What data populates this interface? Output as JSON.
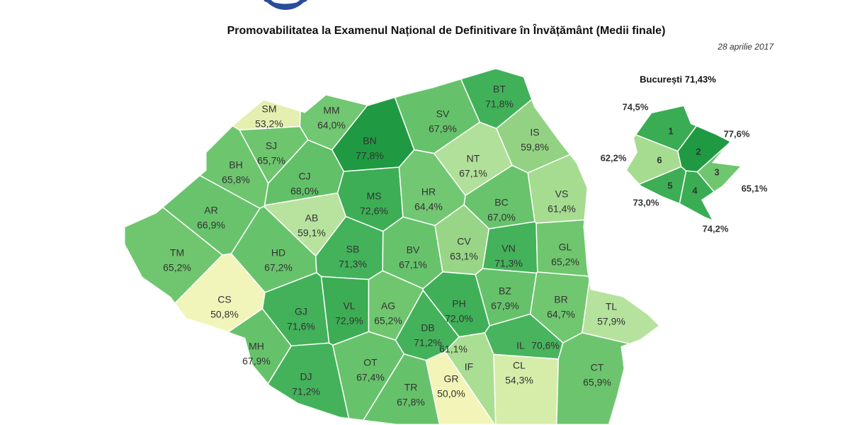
{
  "header": {
    "title": "Promovabilitatea la Examenul Național de Definitivare în Învățământ (Medii finale)",
    "date": "28 aprilie 2017"
  },
  "counties": [
    {
      "code": "SM",
      "value": "53,2%",
      "color": "#e4efb0"
    },
    {
      "code": "MM",
      "value": "64,0%",
      "color": "#72c772"
    },
    {
      "code": "BT",
      "value": "71,8%",
      "color": "#41b159"
    },
    {
      "code": "SV",
      "value": "67,9%",
      "color": "#66c26a"
    },
    {
      "code": "BN",
      "value": "77,8%",
      "color": "#1f9a42"
    },
    {
      "code": "SJ",
      "value": "65,7%",
      "color": "#6dc56e"
    },
    {
      "code": "IS",
      "value": "59,8%",
      "color": "#93d282"
    },
    {
      "code": "BH",
      "value": "65,8%",
      "color": "#6dc56e"
    },
    {
      "code": "CJ",
      "value": "68,0%",
      "color": "#62c068"
    },
    {
      "code": "NT",
      "value": "67,1%",
      "color": "#b0e09a"
    },
    {
      "code": "MS",
      "value": "72,6%",
      "color": "#3dae55"
    },
    {
      "code": "HR",
      "value": "64,4%",
      "color": "#72c772"
    },
    {
      "code": "AR",
      "value": "66,9%",
      "color": "#68c36c"
    },
    {
      "code": "AB",
      "value": "59,1%",
      "color": "#b8e39f"
    },
    {
      "code": "BC",
      "value": "67,0%",
      "color": "#68c36c"
    },
    {
      "code": "VS",
      "value": "61,4%",
      "color": "#a5dc90"
    },
    {
      "code": "TM",
      "value": "65,2%",
      "color": "#6fc66f"
    },
    {
      "code": "HD",
      "value": "67,2%",
      "color": "#67c36b"
    },
    {
      "code": "SB",
      "value": "71,3%",
      "color": "#43b25a"
    },
    {
      "code": "BV",
      "value": "67,1%",
      "color": "#67c36b"
    },
    {
      "code": "CV",
      "value": "63,1%",
      "color": "#98d587"
    },
    {
      "code": "VN",
      "value": "71,3%",
      "color": "#43b25a"
    },
    {
      "code": "GL",
      "value": "65,2%",
      "color": "#6fc66f"
    },
    {
      "code": "CS",
      "value": "50,8%",
      "color": "#f1f5ba"
    },
    {
      "code": "GJ",
      "value": "71,6%",
      "color": "#42b15a"
    },
    {
      "code": "VL",
      "value": "72,9%",
      "color": "#3cad54"
    },
    {
      "code": "AG",
      "value": "65,2%",
      "color": "#6fc66f"
    },
    {
      "code": "DB",
      "value": "71,2%",
      "color": "#44b25b"
    },
    {
      "code": "PH",
      "value": "72,0%",
      "color": "#40b058"
    },
    {
      "code": "BZ",
      "value": "67,9%",
      "color": "#66c26a"
    },
    {
      "code": "BR",
      "value": "64,7%",
      "color": "#71c670"
    },
    {
      "code": "TL",
      "value": "57,9%",
      "color": "#b5e29d"
    },
    {
      "code": "MH",
      "value": "67,9%",
      "color": "#66c26a"
    },
    {
      "code": "OT",
      "value": "67,4%",
      "color": "#67c36b"
    },
    {
      "code": "IF",
      "value": "61,1%",
      "color": "#a9de93"
    },
    {
      "code": "IL",
      "value": "70,6%",
      "color": "#48b45d"
    },
    {
      "code": "CL",
      "value": "54,3%",
      "color": "#d6edaa"
    },
    {
      "code": "CT",
      "value": "65,9%",
      "color": "#6cc56e"
    },
    {
      "code": "DJ",
      "value": "71,2%",
      "color": "#44b25b"
    },
    {
      "code": "TR",
      "value": "67,8%",
      "color": "#66c26a"
    },
    {
      "code": "GR",
      "value": "50,0%",
      "color": "#f3f5b8"
    }
  ],
  "bucharest": {
    "title": "București 71,43%",
    "sectors": [
      {
        "number": "1",
        "value": "74,5%",
        "color": "#3aac53"
      },
      {
        "number": "2",
        "value": "77,6%",
        "color": "#1f9a42"
      },
      {
        "number": "3",
        "value": "65,1%",
        "color": "#6fc66f"
      },
      {
        "number": "4",
        "value": "74,2%",
        "color": "#3aac53"
      },
      {
        "number": "5",
        "value": "73,0%",
        "color": "#3dae55"
      },
      {
        "number": "6",
        "value": "62,2%",
        "color": "#a5dc90"
      }
    ]
  }
}
